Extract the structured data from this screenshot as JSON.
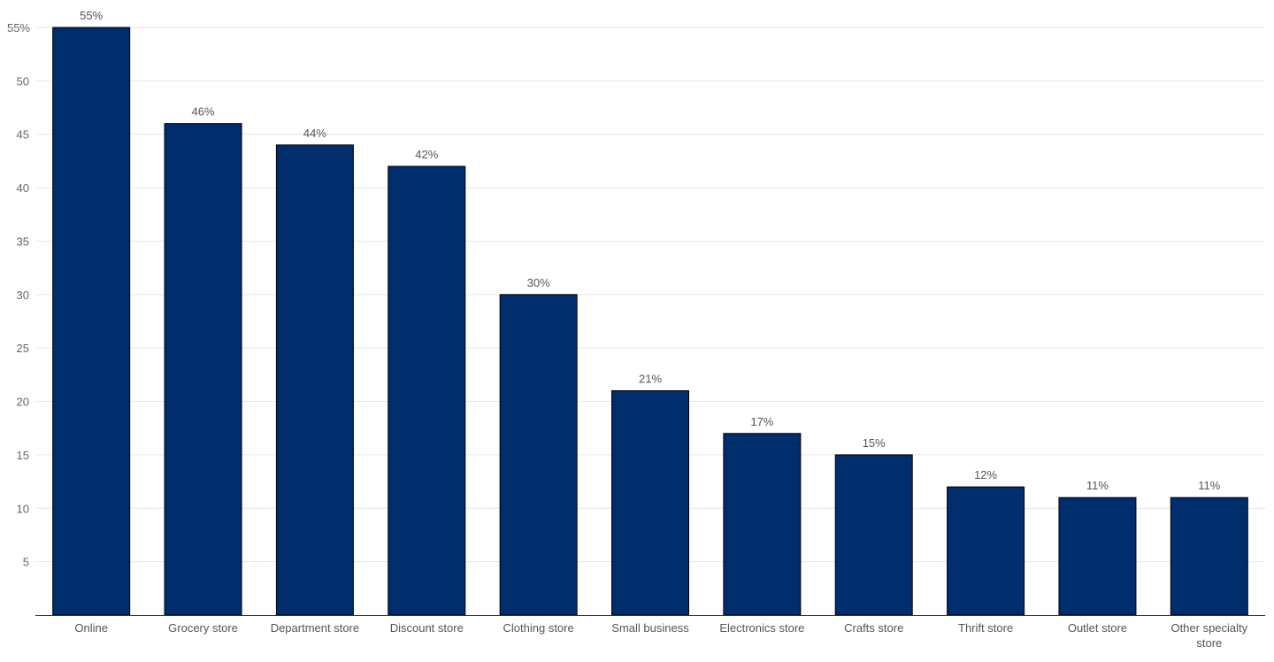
{
  "chart_data": {
    "type": "bar",
    "title": "",
    "xlabel": "",
    "ylabel": "",
    "categories": [
      "Online",
      "Grocery store",
      "Department store",
      "Discount store",
      "Clothing store",
      "Small business",
      "Electronics store",
      "Crafts store",
      "Thrift store",
      "Outlet store",
      "Other specialty store"
    ],
    "values": [
      55,
      46,
      44,
      42,
      30,
      21,
      17,
      15,
      12,
      11,
      11
    ],
    "data_labels": [
      "55%",
      "46%",
      "44%",
      "42%",
      "30%",
      "21%",
      "17%",
      "15%",
      "12%",
      "11%",
      "11%"
    ],
    "ylim": [
      0,
      55
    ],
    "yticks": [
      5,
      10,
      15,
      20,
      25,
      30,
      35,
      40,
      45,
      50
    ],
    "ytick_top_label": "55%",
    "grid": true,
    "legend": "none",
    "colors": {
      "bar": "#002d6b",
      "bar_stroke": "#000000",
      "grid": "#e6e6e6"
    }
  }
}
